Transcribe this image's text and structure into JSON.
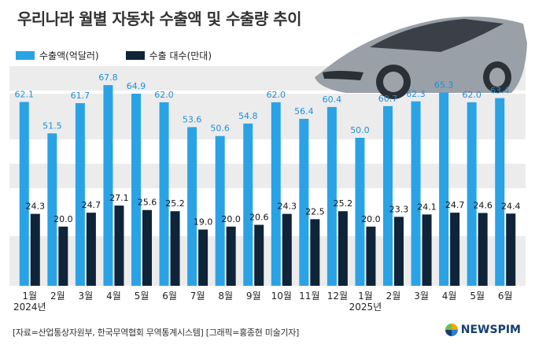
{
  "title": "우리나라 월별 자동차 수출액 및 수출량 추이",
  "source": "[자료=산업통상자원부, 한국무역협회 무역통계시스템] [그래픽=홍종현 미술기자]",
  "brand": "NEWSPIM",
  "colors": {
    "export_value": "#2aa3e6",
    "export_units": "#0f2438",
    "band": "#ececec"
  },
  "chart_data": {
    "type": "bar",
    "categories": [
      "1월",
      "2월",
      "3월",
      "4월",
      "5월",
      "6월",
      "7월",
      "8월",
      "9월",
      "10월",
      "11월",
      "12월",
      "1월",
      "2월",
      "3월",
      "4월",
      "5월",
      "6월"
    ],
    "year_labels": [
      {
        "index": 0,
        "label": "2024년"
      },
      {
        "index": 12,
        "label": "2025년"
      }
    ],
    "series": [
      {
        "name": "수출액(억달러)",
        "values": [
          62.1,
          51.5,
          61.7,
          67.8,
          64.9,
          62.0,
          53.6,
          50.6,
          54.8,
          62.0,
          56.4,
          60.4,
          50.0,
          60.7,
          62.3,
          65.3,
          62.0,
          63.4
        ]
      },
      {
        "name": "수출 대수(만대)",
        "values": [
          24.3,
          20.0,
          24.7,
          27.1,
          25.6,
          25.2,
          19.0,
          20.0,
          20.6,
          24.3,
          22.5,
          25.2,
          20.0,
          23.3,
          24.1,
          24.7,
          24.6,
          24.4
        ]
      }
    ]
  }
}
